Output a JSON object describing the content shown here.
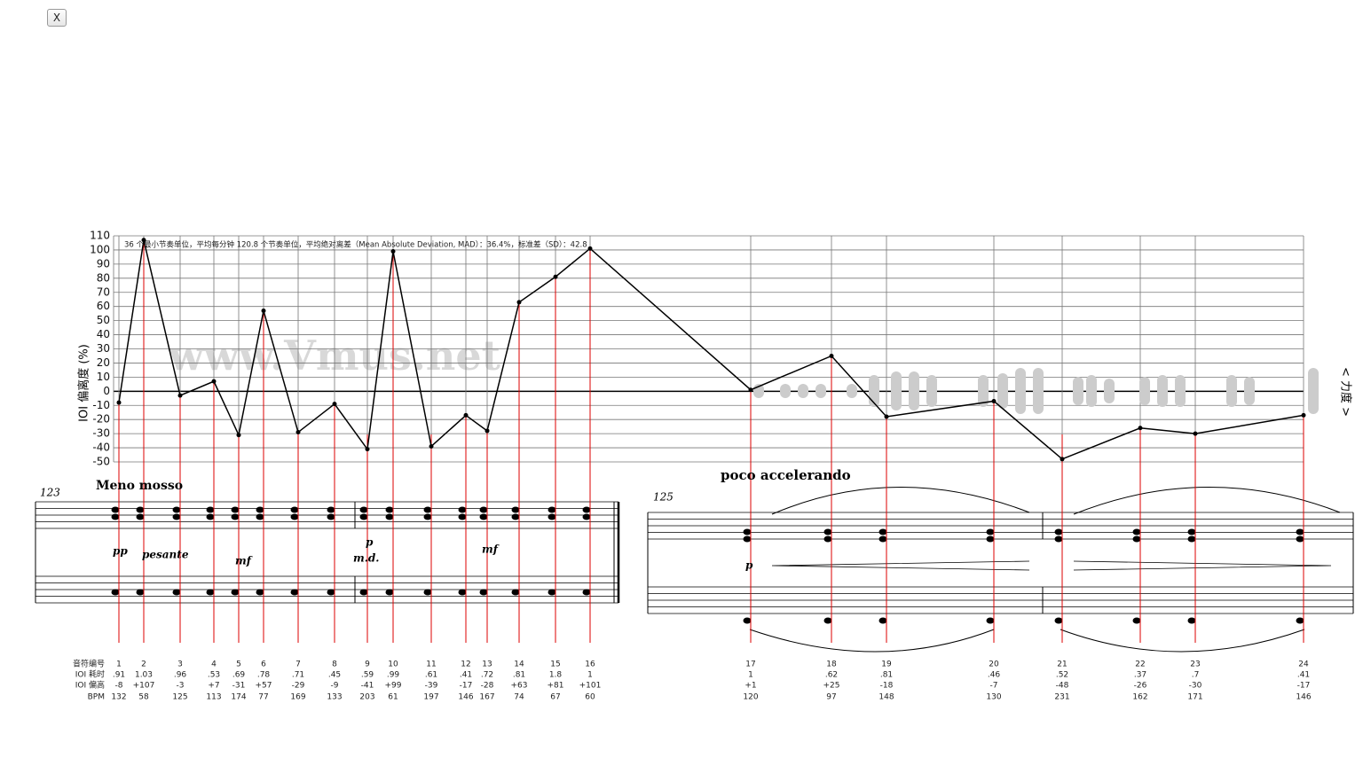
{
  "ui": {
    "close_button": "X"
  },
  "chart_data": {
    "type": "line",
    "title": "36 个最小节奏单位，平均每分钟 120.8 个节奏单位，平均绝对离差（Mean Absolute Deviation, MAD）：36.4%，标准差（SD）：42.8",
    "y_label": "IOI 偏离度 (%)",
    "y2_label": "< 力度 >",
    "watermark": "www.Vmus.net",
    "categories": [
      "1",
      "2",
      "3",
      "4",
      "5",
      "6",
      "7",
      "8",
      "9",
      "10",
      "11",
      "12",
      "13",
      "14",
      "15",
      "16",
      "17",
      "18",
      "19",
      "20",
      "21",
      "22",
      "23",
      "24"
    ],
    "values": [
      -8,
      107,
      -3,
      7,
      -31,
      57,
      -29,
      -9,
      -41,
      99,
      -39,
      -17,
      -28,
      63,
      81,
      101,
      1,
      25,
      -18,
      -7,
      -48,
      -26,
      -30,
      -17
    ],
    "value_labels": [
      "-8",
      "+107",
      "-3",
      "+7",
      "-31",
      "+57",
      "-29",
      "-9",
      "-41",
      "+99",
      "-39",
      "-17",
      "-28",
      "+63",
      "+81",
      "+101",
      "+1",
      "+25",
      "-18",
      "-7",
      "-48",
      "-26",
      "-30",
      "-17"
    ],
    "color": "#000000",
    "ylim": [
      -50,
      110
    ],
    "yticks": [
      -50,
      -40,
      -30,
      -20,
      -10,
      0,
      10,
      20,
      30,
      40,
      50,
      60,
      70,
      80,
      90,
      100,
      110
    ],
    "grid": true
  },
  "table": {
    "row_labels": [
      "音符编号",
      "IOI 耗时",
      "IOI 偏高",
      "BPM"
    ],
    "ioi": [
      ".91",
      "1.03",
      ".96",
      ".53",
      ".69",
      ".78",
      ".71",
      ".45",
      ".59",
      ".99",
      ".61",
      ".41",
      ".72",
      ".81",
      "1.8",
      "1",
      "1",
      ".62",
      ".81",
      ".46",
      ".52",
      ".37",
      ".7",
      ".41"
    ],
    "bpm": [
      "132",
      "58",
      "125",
      "113",
      "174",
      "77",
      "169",
      "133",
      "203",
      "61",
      "197",
      "146",
      "167",
      "74",
      "67",
      "60",
      "120",
      "97",
      "148",
      "130",
      "231",
      "162",
      "171",
      "146"
    ]
  },
  "score": {
    "measure_1": "123",
    "measure_2": "125",
    "tempo_1": "Meno mosso",
    "tempo_2": "poco accelerando",
    "expressions": [
      "pp",
      "pesante",
      "mf",
      "p",
      "m.d.",
      "mf",
      "p"
    ]
  }
}
